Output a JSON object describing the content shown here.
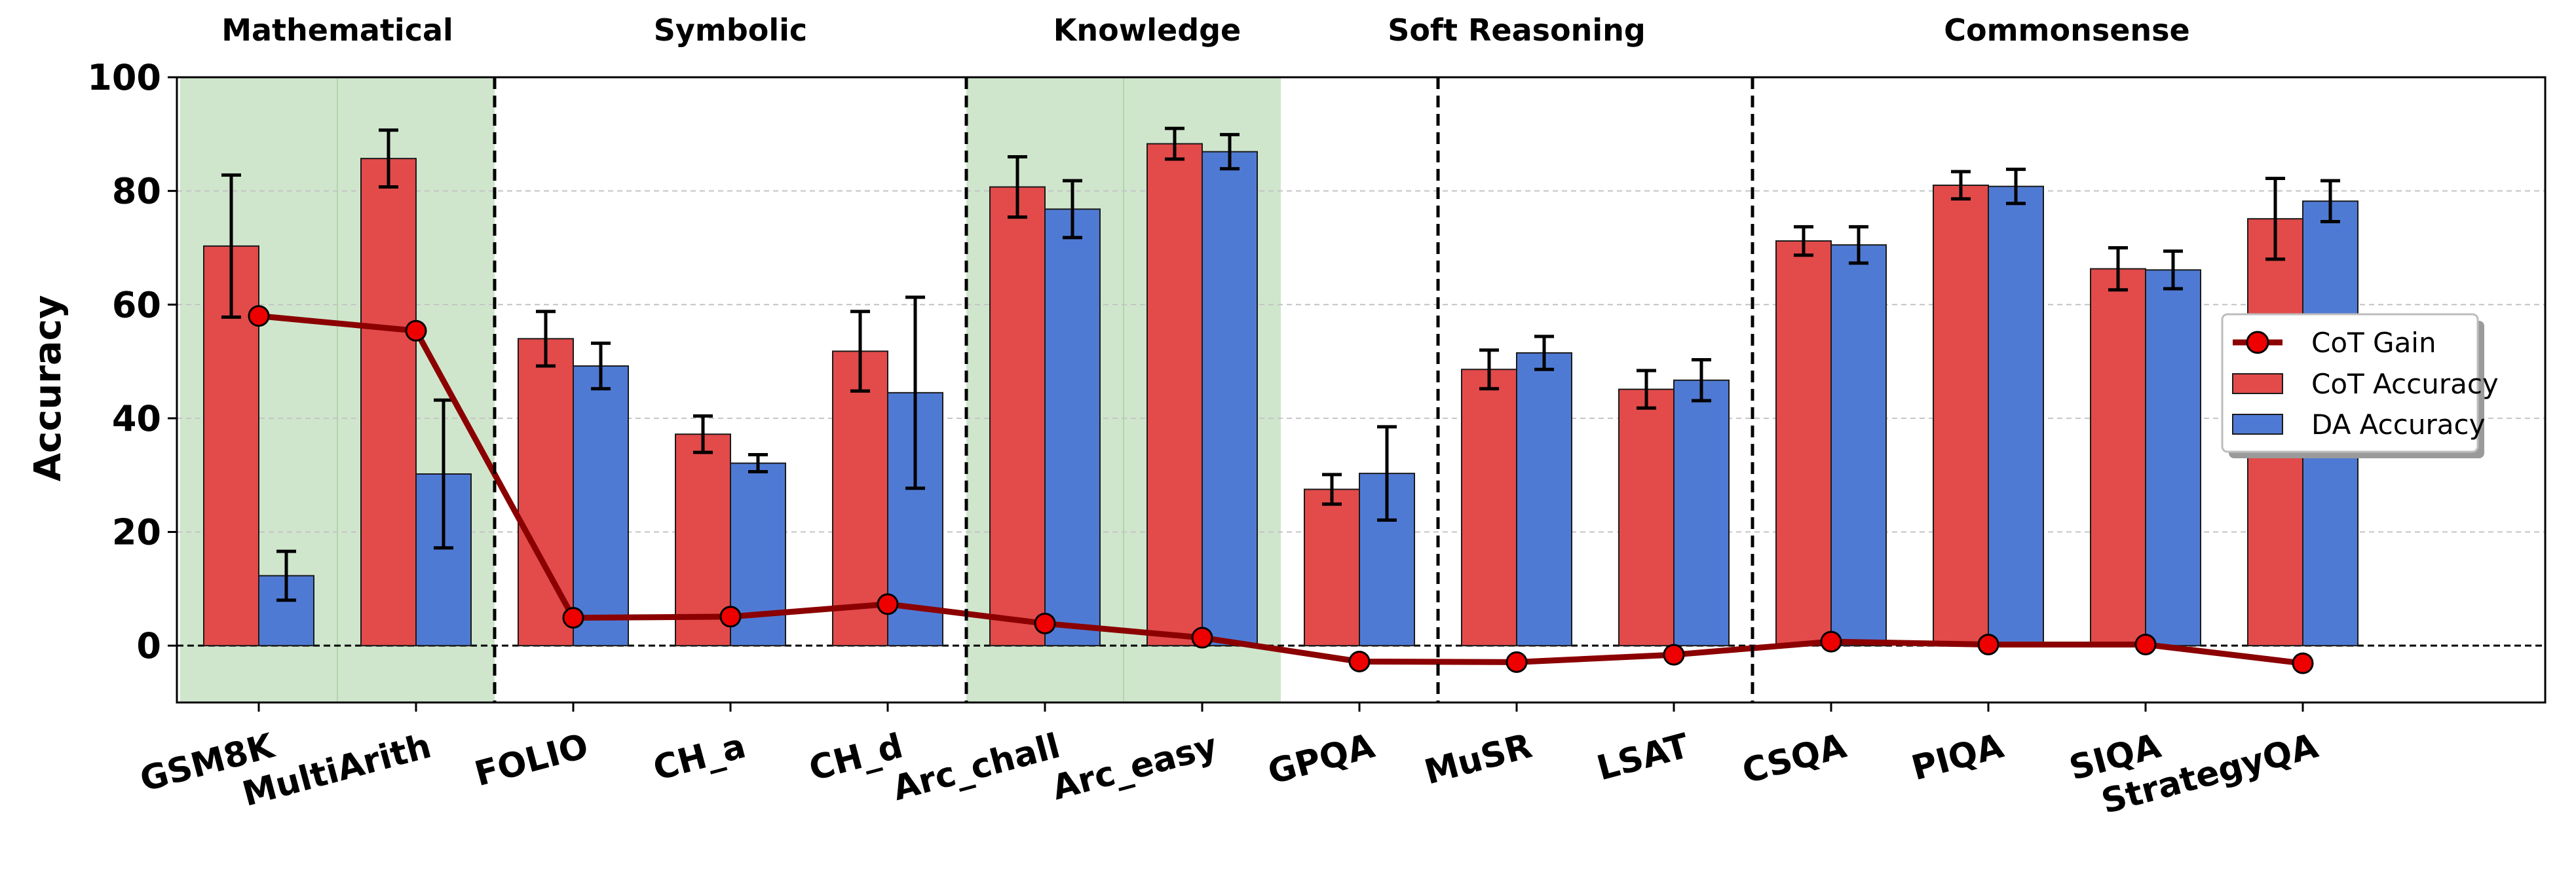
{
  "chart_data": {
    "type": "bar",
    "ylabel": "Accuracy",
    "xlabel": "",
    "ylim": [
      -10,
      100
    ],
    "yticks": [
      0,
      20,
      40,
      60,
      80,
      100
    ],
    "grid": "horizontal dashed",
    "legend_position": "right",
    "categories": [
      "GSM8K",
      "MultiArith",
      "FOLIO",
      "CH_a",
      "CH_d",
      "Arc_chall",
      "Arc_easy",
      "GPQA",
      "MuSR",
      "LSAT",
      "CSQA",
      "PIQA",
      "SIQA",
      "StrategyQA"
    ],
    "groups": [
      {
        "name": "Mathematical",
        "start": 0,
        "end": 1,
        "shaded": true
      },
      {
        "name": "Symbolic",
        "start": 2,
        "end": 4,
        "shaded": false
      },
      {
        "name": "Knowledge",
        "start": 5,
        "end": 6,
        "shaded": true
      },
      {
        "name": "Soft Reasoning",
        "start": 7,
        "end": 9,
        "shaded": false
      },
      {
        "name": "Commonsense",
        "start": 10,
        "end": 13,
        "shaded": false
      }
    ],
    "group_label_positions": [
      0.5,
      3,
      5.65,
      8,
      11.5
    ],
    "separators_after": [
      1,
      4,
      7,
      9
    ],
    "series": [
      {
        "name": "CoT Accuracy",
        "kind": "bar",
        "color": "#e34a4a",
        "values": [
          70.3,
          85.7,
          54.0,
          37.2,
          51.8,
          80.7,
          88.3,
          27.5,
          48.6,
          45.1,
          71.2,
          81.0,
          66.3,
          75.1
        ],
        "errors": [
          12.5,
          5.0,
          4.8,
          3.2,
          7.0,
          5.3,
          2.7,
          2.6,
          3.4,
          3.3,
          2.5,
          2.4,
          3.7,
          7.1
        ]
      },
      {
        "name": "DA Accuracy",
        "kind": "bar",
        "color": "#4f7ad4",
        "values": [
          12.3,
          30.2,
          49.2,
          32.1,
          44.5,
          76.8,
          86.9,
          30.3,
          51.5,
          46.7,
          70.5,
          80.8,
          66.1,
          78.2
        ],
        "errors": [
          4.3,
          13.0,
          4.0,
          1.5,
          16.8,
          5.0,
          3.0,
          8.2,
          2.9,
          3.6,
          3.2,
          3.0,
          3.3,
          3.6
        ]
      },
      {
        "name": "CoT Gain",
        "kind": "line",
        "color": "#8b0000",
        "marker_color": "#ee0000",
        "values": [
          58.0,
          55.4,
          4.9,
          5.1,
          7.3,
          3.9,
          1.4,
          -2.8,
          -2.9,
          -1.6,
          0.7,
          0.2,
          0.2,
          -3.1
        ]
      }
    ],
    "legend": [
      "CoT Gain",
      "CoT Accuracy",
      "DA Accuracy"
    ],
    "colors": {
      "shade": "#cfe6cc",
      "grid": "#c4c4c4",
      "axis": "#000000",
      "bar_edge": "#1a1a1a"
    }
  }
}
